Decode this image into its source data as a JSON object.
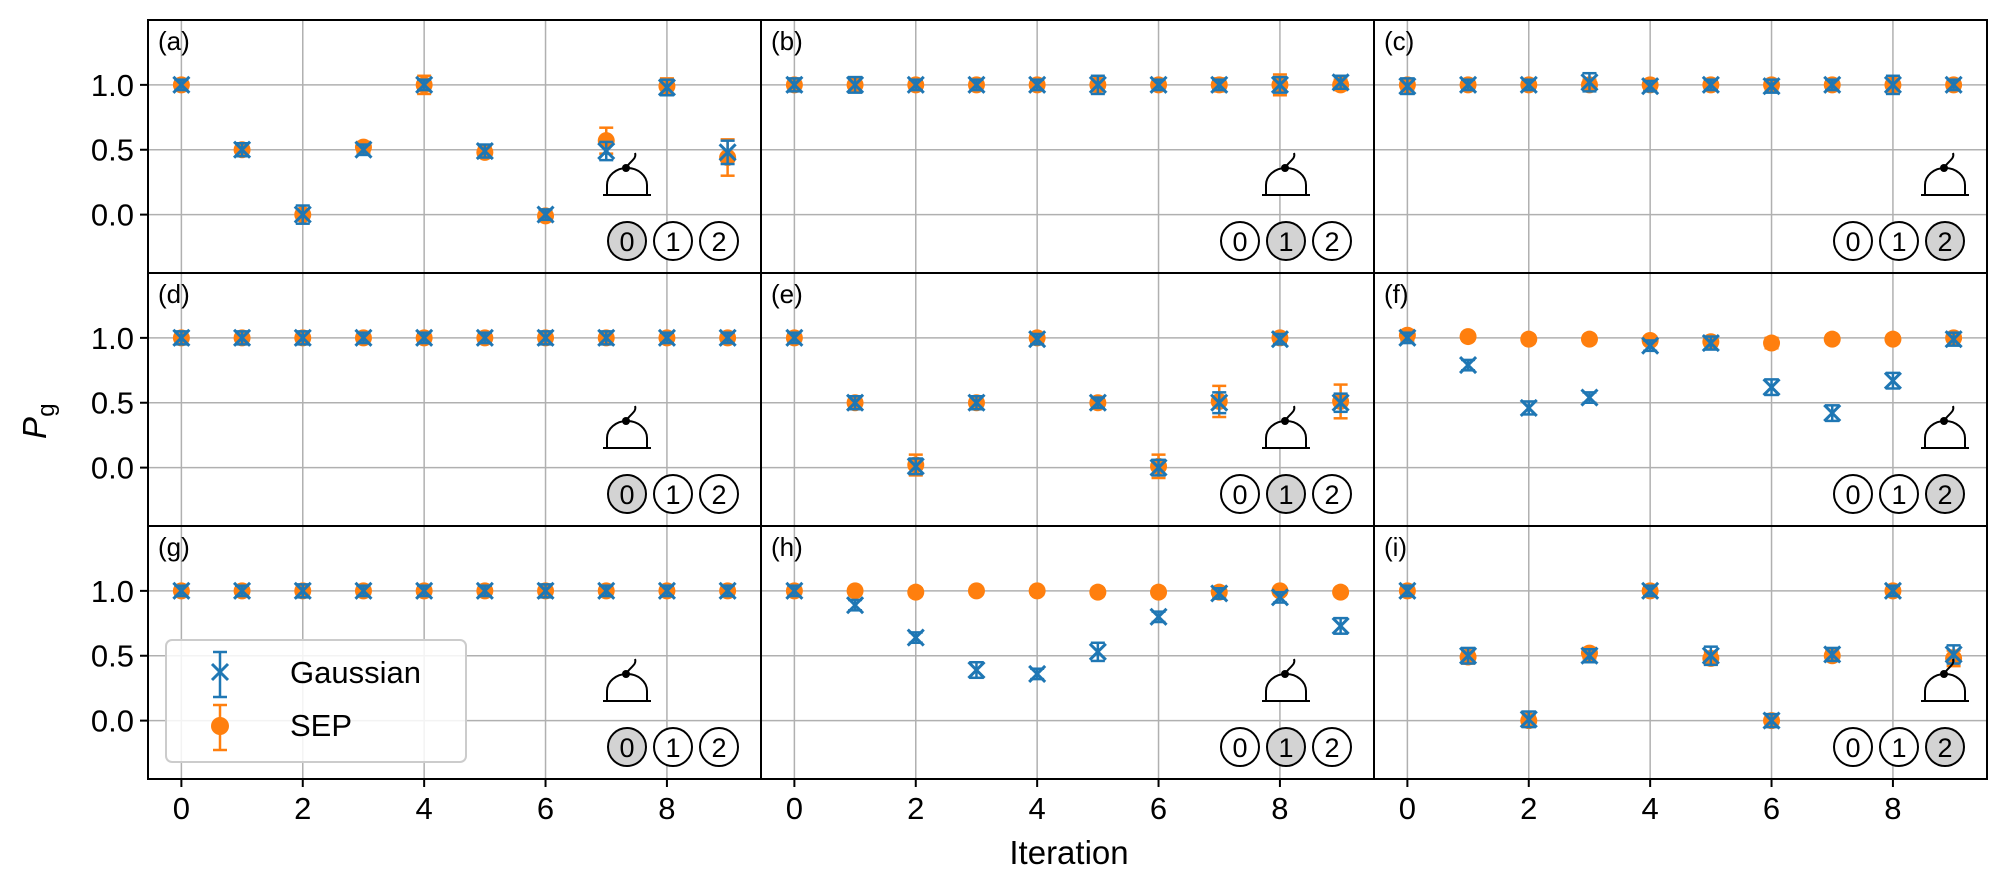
{
  "figure": {
    "xlabel": "Iteration",
    "ylabel_main": "P",
    "ylabel_sub": "g"
  },
  "colors": {
    "gaussian": "#1f77b4",
    "sep": "#ff7f0e",
    "grid": "#b0b0b0",
    "highlight_fill": "#d3d3d3"
  },
  "legend": {
    "gaussian": "Gaussian",
    "sep": "SEP"
  },
  "chart_data": [
    {
      "panel": "(a)",
      "highlight": 0,
      "type": "scatter",
      "x": [
        0,
        1,
        2,
        3,
        4,
        5,
        6,
        7,
        8,
        9
      ],
      "gaussian": [
        1.0,
        0.5,
        0.0,
        0.5,
        1.0,
        0.49,
        0.0,
        0.49,
        0.98,
        0.48
      ],
      "gaussian_err": [
        0.04,
        0.05,
        0.07,
        0.04,
        0.04,
        0.05,
        0.04,
        0.07,
        0.06,
        0.09
      ],
      "sep": [
        1.0,
        0.5,
        0.0,
        0.52,
        1.0,
        0.48,
        -0.01,
        0.57,
        0.99,
        0.44
      ],
      "sep_err": [
        0.04,
        0.04,
        0.04,
        0.04,
        0.07,
        0.04,
        0.04,
        0.1,
        0.06,
        0.14
      ]
    },
    {
      "panel": "(b)",
      "highlight": 1,
      "type": "scatter",
      "x": [
        0,
        1,
        2,
        3,
        4,
        5,
        6,
        7,
        8,
        9
      ],
      "gaussian": [
        1.0,
        1.0,
        1.0,
        1.0,
        1.0,
        1.0,
        1.0,
        1.0,
        1.0,
        1.02
      ],
      "gaussian_err": [
        0.05,
        0.06,
        0.04,
        0.04,
        0.04,
        0.07,
        0.04,
        0.04,
        0.06,
        0.05
      ],
      "sep": [
        1.0,
        1.0,
        1.0,
        1.0,
        1.0,
        1.0,
        1.0,
        1.0,
        1.0,
        1.0
      ],
      "sep_err": [
        0.04,
        0.05,
        0.04,
        0.04,
        0.04,
        0.05,
        0.04,
        0.05,
        0.08,
        0.04
      ]
    },
    {
      "panel": "(c)",
      "highlight": 2,
      "type": "scatter",
      "x": [
        0,
        1,
        2,
        3,
        4,
        5,
        6,
        7,
        8,
        9
      ],
      "gaussian": [
        0.99,
        1.0,
        1.0,
        1.02,
        0.99,
        1.0,
        0.99,
        1.0,
        1.0,
        1.0
      ],
      "gaussian_err": [
        0.06,
        0.04,
        0.04,
        0.07,
        0.04,
        0.04,
        0.05,
        0.04,
        0.07,
        0.04
      ],
      "sep": [
        1.0,
        1.0,
        1.0,
        1.0,
        1.0,
        1.0,
        1.0,
        1.0,
        1.0,
        1.0
      ],
      "sep_err": [
        0.04,
        0.04,
        0.04,
        0.04,
        0.04,
        0.04,
        0.04,
        0.04,
        0.05,
        0.04
      ]
    },
    {
      "panel": "(d)",
      "highlight": 0,
      "type": "scatter",
      "x": [
        0,
        1,
        2,
        3,
        4,
        5,
        6,
        7,
        8,
        9
      ],
      "gaussian": [
        1.0,
        1.0,
        1.0,
        1.0,
        1.0,
        1.0,
        1.0,
        1.0,
        1.0,
        1.0
      ],
      "gaussian_err": [
        0.05,
        0.05,
        0.05,
        0.04,
        0.04,
        0.04,
        0.05,
        0.05,
        0.04,
        0.04
      ],
      "sep": [
        1.0,
        1.0,
        1.0,
        1.0,
        1.0,
        1.0,
        1.0,
        1.0,
        1.0,
        1.0
      ],
      "sep_err": [
        0.04,
        0.04,
        0.04,
        0.04,
        0.04,
        0.04,
        0.04,
        0.04,
        0.04,
        0.04
      ]
    },
    {
      "panel": "(e)",
      "highlight": 1,
      "type": "scatter",
      "x": [
        0,
        1,
        2,
        3,
        4,
        5,
        6,
        7,
        8,
        9
      ],
      "gaussian": [
        1.0,
        0.5,
        0.01,
        0.5,
        0.99,
        0.5,
        0.0,
        0.5,
        0.99,
        0.5
      ],
      "gaussian_err": [
        0.04,
        0.05,
        0.06,
        0.05,
        0.04,
        0.04,
        0.06,
        0.08,
        0.04,
        0.07
      ],
      "sep": [
        1.0,
        0.5,
        0.02,
        0.5,
        1.0,
        0.5,
        0.01,
        0.51,
        1.0,
        0.51
      ],
      "sep_err": [
        0.04,
        0.04,
        0.08,
        0.05,
        0.04,
        0.04,
        0.09,
        0.12,
        0.04,
        0.13
      ]
    },
    {
      "panel": "(f)",
      "highlight": 2,
      "type": "scatter",
      "x": [
        0,
        1,
        2,
        3,
        4,
        5,
        6,
        7,
        8,
        9
      ],
      "gaussian": [
        1.0,
        0.79,
        0.46,
        0.54,
        0.94,
        0.96,
        0.62,
        0.42,
        0.67,
        0.99
      ],
      "gaussian_err": [
        0.04,
        0.04,
        0.05,
        0.04,
        0.04,
        0.05,
        0.06,
        0.06,
        0.06,
        0.05
      ],
      "sep": [
        1.02,
        1.01,
        0.99,
        0.99,
        0.98,
        0.97,
        0.96,
        0.99,
        0.99,
        1.0
      ],
      "sep_err": [
        0.04,
        0.03,
        0.03,
        0.03,
        0.03,
        0.03,
        0.04,
        0.03,
        0.03,
        0.03
      ]
    },
    {
      "panel": "(g)",
      "highlight": 0,
      "type": "scatter",
      "x": [
        0,
        1,
        2,
        3,
        4,
        5,
        6,
        7,
        8,
        9
      ],
      "gaussian": [
        1.0,
        1.0,
        1.0,
        1.0,
        1.0,
        1.0,
        1.0,
        1.0,
        1.0,
        1.0
      ],
      "gaussian_err": [
        0.04,
        0.04,
        0.05,
        0.04,
        0.04,
        0.04,
        0.05,
        0.04,
        0.04,
        0.04
      ],
      "sep": [
        1.0,
        1.0,
        1.0,
        1.0,
        1.0,
        1.0,
        1.0,
        1.0,
        1.0,
        1.0
      ],
      "sep_err": [
        0.03,
        0.03,
        0.04,
        0.03,
        0.03,
        0.03,
        0.04,
        0.03,
        0.03,
        0.03
      ]
    },
    {
      "panel": "(h)",
      "highlight": 1,
      "type": "scatter",
      "x": [
        0,
        1,
        2,
        3,
        4,
        5,
        6,
        7,
        8,
        9
      ],
      "gaussian": [
        1.0,
        0.89,
        0.64,
        0.39,
        0.36,
        0.53,
        0.8,
        0.98,
        0.95,
        0.73
      ],
      "gaussian_err": [
        0.04,
        0.04,
        0.04,
        0.06,
        0.04,
        0.07,
        0.04,
        0.04,
        0.04,
        0.06
      ],
      "sep": [
        1.0,
        1.0,
        0.99,
        1.0,
        1.0,
        0.99,
        0.99,
        0.99,
        1.0,
        0.99
      ],
      "sep_err": [
        0.03,
        0.03,
        0.03,
        0.03,
        0.03,
        0.03,
        0.03,
        0.03,
        0.03,
        0.03
      ]
    },
    {
      "panel": "(i)",
      "highlight": 2,
      "type": "scatter",
      "x": [
        0,
        1,
        2,
        3,
        4,
        5,
        6,
        7,
        8,
        9
      ],
      "gaussian": [
        1.0,
        0.5,
        0.01,
        0.5,
        1.0,
        0.5,
        0.0,
        0.51,
        1.0,
        0.51
      ],
      "gaussian_err": [
        0.04,
        0.06,
        0.06,
        0.05,
        0.04,
        0.07,
        0.05,
        0.05,
        0.04,
        0.07
      ],
      "sep": [
        1.0,
        0.49,
        0.0,
        0.52,
        1.0,
        0.48,
        0.0,
        0.5,
        1.0,
        0.48
      ],
      "sep_err": [
        0.04,
        0.05,
        0.04,
        0.04,
        0.04,
        0.05,
        0.04,
        0.04,
        0.04,
        0.06
      ]
    }
  ],
  "axes": {
    "xlim": [
      -0.55,
      9.55
    ],
    "ylim": [
      -0.45,
      1.5
    ],
    "xticks": [
      0,
      2,
      4,
      6,
      8
    ],
    "xtick_labels": [
      "0",
      "2",
      "4",
      "6",
      "8"
    ],
    "yticks": [
      1.0,
      0.5,
      0.0
    ],
    "ytick_labels": [
      "1.0",
      "0.5",
      "0.0"
    ],
    "x_grid": [
      0,
      2,
      4,
      6,
      8
    ],
    "y_grid": [
      1.0,
      0.5,
      0.0
    ]
  },
  "circle_labels": [
    "0",
    "1",
    "2"
  ]
}
